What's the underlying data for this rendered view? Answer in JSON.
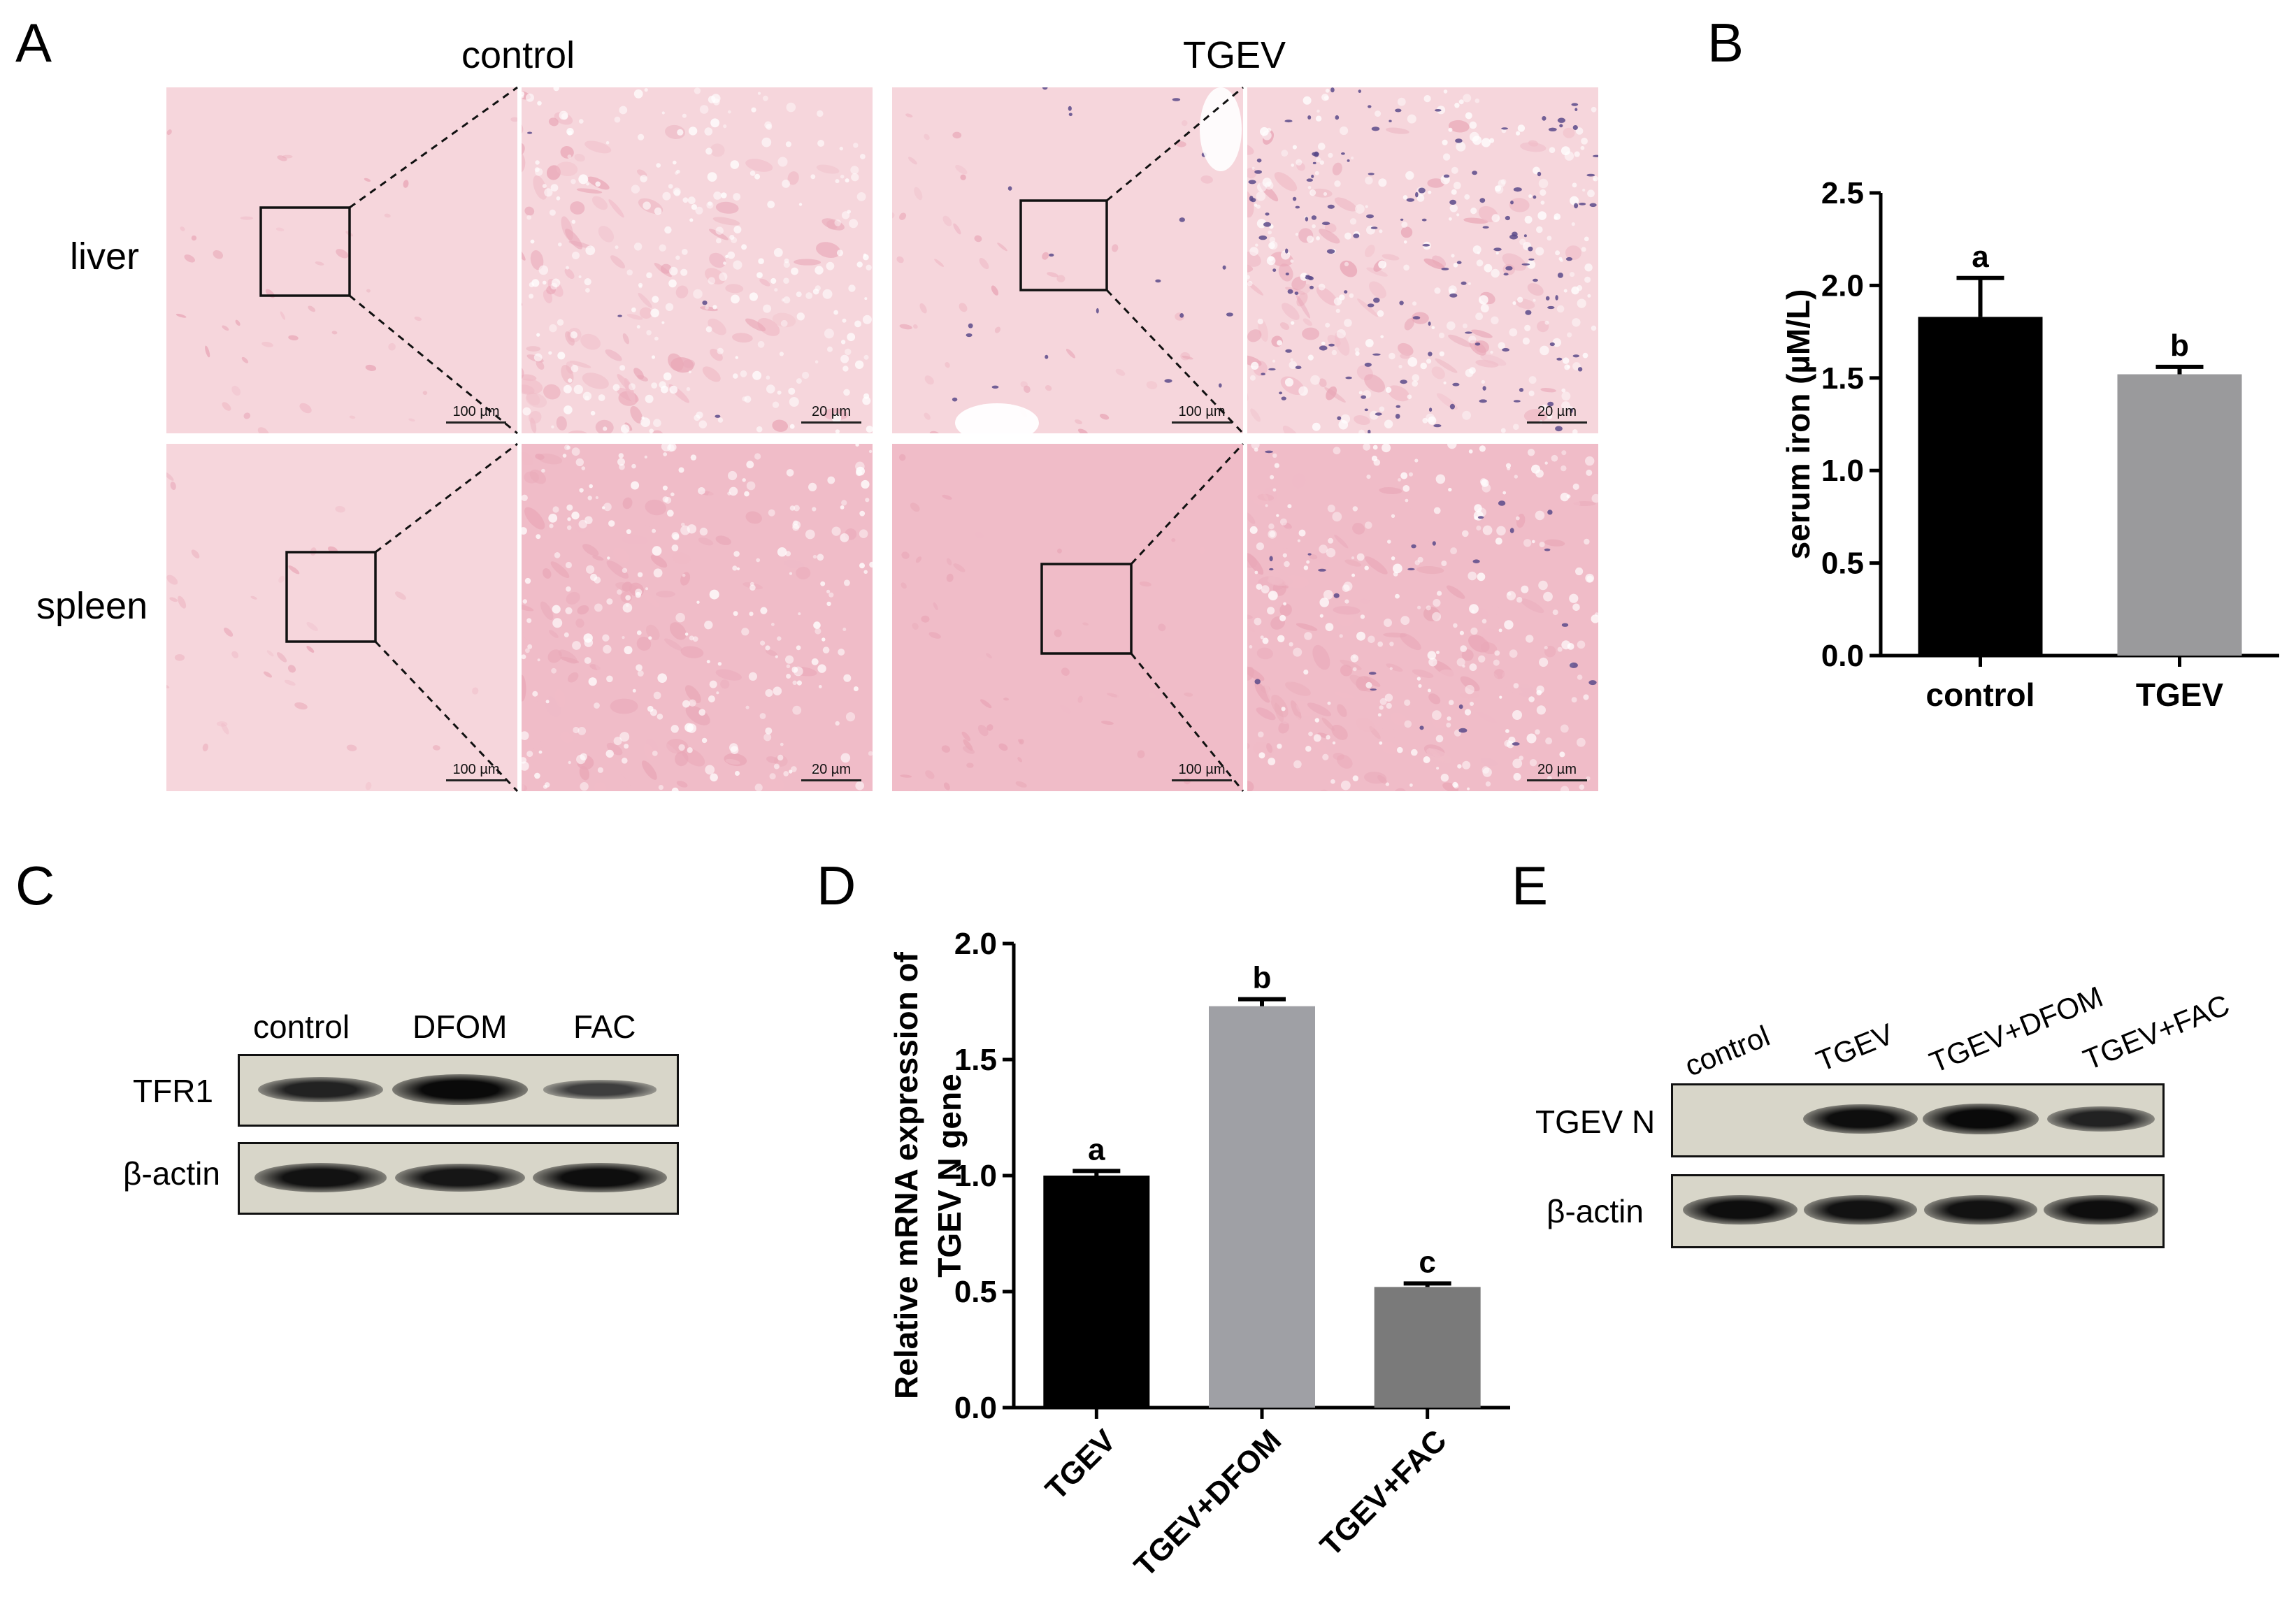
{
  "panels": {
    "A": "A",
    "B": "B",
    "C": "C",
    "D": "D",
    "E": "E"
  },
  "panel_a": {
    "col_labels": [
      "control",
      "TGEV"
    ],
    "row_labels": [
      "liver",
      "spleen"
    ],
    "scale_low": "100 µm",
    "scale_high": "20 µm",
    "colors": {
      "tissue_light": "#f6d6dc",
      "tissue_mid": "#f0bcc8",
      "tissue_dense": "#e9a7b7",
      "nuclei": "#5b4a8a"
    }
  },
  "chart_data": [
    {
      "id": "B",
      "type": "bar",
      "categories": [
        "control",
        "TGEV"
      ],
      "values": [
        1.83,
        1.52
      ],
      "errors": [
        0.21,
        0.04
      ],
      "letters": [
        "a",
        "b"
      ],
      "colors": [
        "#000000",
        "#9a9a9c"
      ],
      "ylabel": "serum iron (µM/L)",
      "ylim": [
        0,
        2.5
      ],
      "yticks": [
        0.0,
        0.5,
        1.0,
        1.5,
        2.0,
        2.5
      ],
      "ytick_labels": [
        "0.0",
        "0.5",
        "1.0",
        "1.5",
        "2.0",
        "2.5"
      ]
    },
    {
      "id": "D",
      "type": "bar",
      "categories": [
        "TGEV",
        "TGEV+DFOM",
        "TGEV+FAC"
      ],
      "values": [
        1.0,
        1.73,
        0.52
      ],
      "errors": [
        0.02,
        0.03,
        0.015
      ],
      "letters": [
        "a",
        "b",
        "c"
      ],
      "colors": [
        "#000000",
        "#9fa0a5",
        "#7a7a7a"
      ],
      "ylabel_lines": [
        "Relative  mRNA expression of",
        "TGEV N gene"
      ],
      "ylim": [
        0,
        2.0
      ],
      "yticks": [
        0.0,
        0.5,
        1.0,
        1.5,
        2.0
      ],
      "ytick_labels": [
        "0.0",
        "0.5",
        "1.0",
        "1.5",
        "2.0"
      ]
    }
  ],
  "panel_c": {
    "lanes": [
      "control",
      "DFOM",
      "FAC"
    ],
    "rows": [
      {
        "label": "TFR1",
        "intensity": [
          0.7,
          1.0,
          0.35
        ]
      },
      {
        "label": "β-actin",
        "intensity": [
          0.9,
          0.85,
          0.95
        ]
      }
    ]
  },
  "panel_e": {
    "lanes": [
      "control",
      "TGEV",
      "TGEV+DFOM",
      "TGEV+FAC"
    ],
    "rows": [
      {
        "label": "TGEV N",
        "intensity": [
          0.0,
          0.95,
          1.0,
          0.7
        ]
      },
      {
        "label": "β-actin",
        "intensity": [
          0.95,
          0.9,
          0.9,
          0.95
        ]
      }
    ]
  }
}
